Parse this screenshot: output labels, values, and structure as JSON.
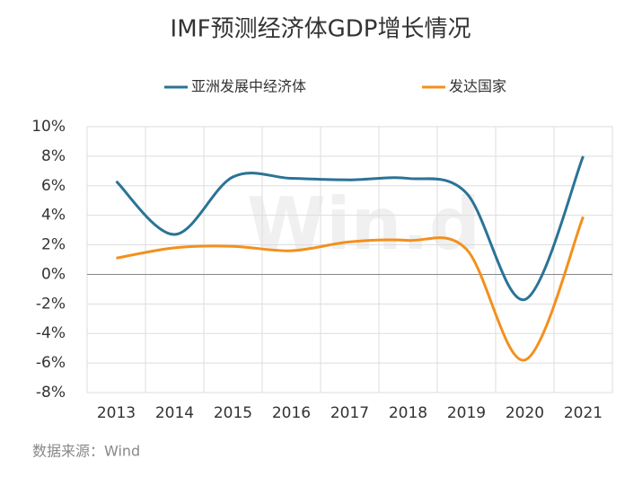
{
  "chart_data": {
    "type": "line",
    "title": "IMF预测经济体GDP增长情况",
    "categories": [
      "2013",
      "2014",
      "2015",
      "2016",
      "2017",
      "2018",
      "2019",
      "2020",
      "2021"
    ],
    "series": [
      {
        "name": "亚洲发展中经济体",
        "color": "#2a7397",
        "values": [
          6.3,
          2.7,
          6.6,
          6.5,
          6.4,
          6.5,
          5.5,
          -1.7,
          8.0
        ]
      },
      {
        "name": "发达国家",
        "color": "#f3901d",
        "values": [
          1.1,
          1.8,
          1.9,
          1.6,
          2.2,
          2.3,
          1.7,
          -5.8,
          3.9
        ]
      }
    ],
    "ylim": [
      -8,
      10
    ],
    "yticks": [
      {
        "value": 10,
        "label": "10%"
      },
      {
        "value": 8,
        "label": "8%"
      },
      {
        "value": 6,
        "label": "6%"
      },
      {
        "value": 4,
        "label": "4%"
      },
      {
        "value": 2,
        "label": "2%"
      },
      {
        "value": 0,
        "label": "0%"
      },
      {
        "value": -2,
        "label": "-2%"
      },
      {
        "value": -4,
        "label": "-4%"
      },
      {
        "value": -6,
        "label": "-6%"
      },
      {
        "value": -8,
        "label": "-8%"
      }
    ],
    "grid": true,
    "legend": "top",
    "source": "数据来源：Wind",
    "watermark": "Win.d"
  }
}
